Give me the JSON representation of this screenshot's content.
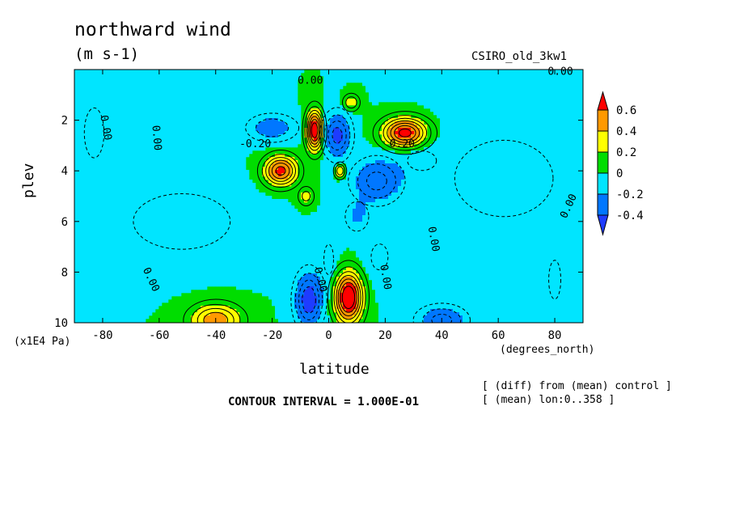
{
  "chart_data": {
    "type": "heatmap",
    "title": "northward wind",
    "units": "(m s-1)",
    "model_label": "CSIRO_old_3kw1",
    "xlabel": "latitude",
    "ylabel": "plev",
    "x_units": "(degrees_north)",
    "y_units": "(x1E4 Pa)",
    "xlim": [
      -90,
      90
    ],
    "ylim": [
      10,
      0
    ],
    "x_ticks": [
      "-80",
      "-60",
      "-40",
      "-20",
      "0",
      "20",
      "40",
      "60",
      "80"
    ],
    "y_ticks": [
      "2",
      "4",
      "6",
      "8",
      "10"
    ],
    "contour_interval_text": "CONTOUR INTERVAL = 1.000E-01",
    "notes": [
      "[ (diff) from (mean) control ]",
      "[ (mean) lon:0..358 ]"
    ],
    "legend": {
      "labels": [
        "0.6",
        "0.4",
        "0.2",
        "0",
        "-0.2",
        "-0.4"
      ],
      "colors": [
        "#ff0000",
        "#ff9900",
        "#ffff00",
        "#00dd00",
        "#00e5ff",
        "#0077ff",
        "#1e3cff"
      ]
    },
    "contour_labels": [
      {
        "text": "0.00",
        "x": -6.5,
        "y": 0.45
      },
      {
        "text": "0.00",
        "x": 82,
        "y": 0.1
      },
      {
        "text": "0.00",
        "x": -79,
        "y": 2.3,
        "rotate": 80
      },
      {
        "text": "0.00",
        "x": -61,
        "y": 2.7,
        "rotate": 85
      },
      {
        "text": "-0.20",
        "x": -26,
        "y": 2.95
      },
      {
        "text": "0.20",
        "x": 26,
        "y": 2.95
      },
      {
        "text": "0.00",
        "x": 37,
        "y": 6.7,
        "rotate": 80
      },
      {
        "text": "0.00",
        "x": 85,
        "y": 5.4,
        "rotate": -65
      },
      {
        "text": "0.00",
        "x": -63,
        "y": 8.3,
        "rotate": 65
      },
      {
        "text": "0.00",
        "x": -3,
        "y": 8.3,
        "rotate": 75
      },
      {
        "text": "0.00",
        "x": 20,
        "y": 8.2,
        "rotate": 80
      }
    ],
    "features": [
      {
        "lat": -20,
        "plev": 2.3,
        "value": -0.3,
        "sx": 9,
        "sy": 0.55
      },
      {
        "lat": -5,
        "plev": 2.4,
        "value": 0.8,
        "sx": 3,
        "sy": 0.8
      },
      {
        "lat": 3,
        "plev": 2.6,
        "value": -0.45,
        "sx": 5,
        "sy": 0.9
      },
      {
        "lat": 8,
        "plev": 1.3,
        "value": 0.3,
        "sx": 3,
        "sy": 0.35
      },
      {
        "lat": 27,
        "plev": 2.5,
        "value": 0.75,
        "sx": 8,
        "sy": 0.6
      },
      {
        "lat": -17,
        "plev": 4.0,
        "value": 0.65,
        "sx": 6,
        "sy": 0.6
      },
      {
        "lat": -8,
        "plev": 5.0,
        "value": 0.25,
        "sx": 3,
        "sy": 0.4
      },
      {
        "lat": 4,
        "plev": 4.0,
        "value": 0.4,
        "sx": 2,
        "sy": 0.3
      },
      {
        "lat": 17,
        "plev": 4.4,
        "value": -0.35,
        "sx": 9,
        "sy": 0.9
      },
      {
        "lat": 10,
        "plev": 5.8,
        "value": -0.2,
        "sx": 5,
        "sy": 0.7
      },
      {
        "lat": 33,
        "plev": 3.6,
        "value": -0.12,
        "sx": 12,
        "sy": 0.9
      },
      {
        "lat": -52,
        "plev": 6.0,
        "value": -0.16,
        "sx": 25,
        "sy": 1.6
      },
      {
        "lat": -83,
        "plev": 2.5,
        "value": -0.14,
        "sx": 6,
        "sy": 1.7
      },
      {
        "lat": 62,
        "plev": 4.3,
        "value": -0.14,
        "sx": 30,
        "sy": 2.6
      },
      {
        "lat": 80,
        "plev": 8.3,
        "value": -0.12,
        "sx": 5,
        "sy": 1.8
      },
      {
        "lat": -7,
        "plev": 9.1,
        "value": -0.5,
        "sx": 5,
        "sy": 1.1
      },
      {
        "lat": 7,
        "plev": 9.0,
        "value": 0.85,
        "sx": 5,
        "sy": 1.0
      },
      {
        "lat": -40,
        "plev": 9.9,
        "value": 0.5,
        "sx": 9,
        "sy": 0.65
      },
      {
        "lat": 40,
        "plev": 9.9,
        "value": -0.35,
        "sx": 9,
        "sy": 0.6
      },
      {
        "lat": 62,
        "plev": 9.6,
        "value": -0.1,
        "sx": 12,
        "sy": 0.7
      },
      {
        "lat": 0,
        "plev": 7.5,
        "value": -0.12,
        "sx": 4,
        "sy": 1.4
      },
      {
        "lat": 18,
        "plev": 7.4,
        "value": -0.12,
        "sx": 7,
        "sy": 1.2
      }
    ]
  }
}
